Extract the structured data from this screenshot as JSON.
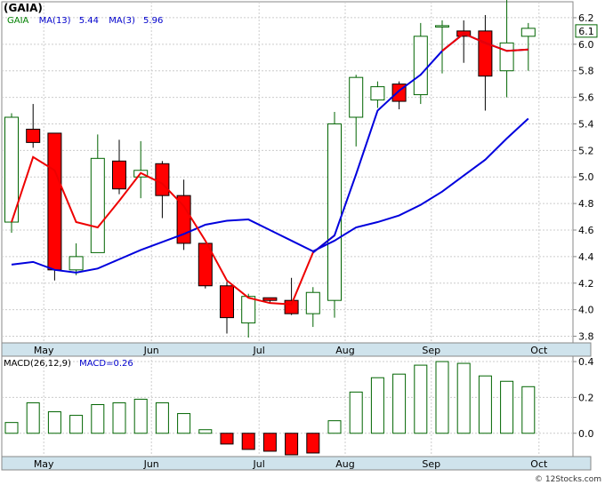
{
  "chart_data": [
    {
      "type": "candlestick",
      "title": "(GAIA)",
      "legend": [
        {
          "label": "GAIA",
          "color": "#008000"
        },
        {
          "label": "MA(13)",
          "value": "5.44",
          "color": "#0000cc"
        },
        {
          "label": "MA(3)",
          "value": "5.96",
          "color": "#0000cc"
        }
      ],
      "x_tick_labels": [
        {
          "label": "May",
          "index": 1
        },
        {
          "label": "Jun",
          "index": 6
        },
        {
          "label": "Jul",
          "index": 11
        },
        {
          "label": "Aug",
          "index": 15
        },
        {
          "label": "Sep",
          "index": 19
        },
        {
          "label": "Oct",
          "index": 24
        }
      ],
      "y_tick_labels": [
        "3.8",
        "4.0",
        "4.2",
        "4.4",
        "4.6",
        "4.8",
        "5.0",
        "5.2",
        "5.4",
        "5.6",
        "5.8",
        "6.0",
        "6.2"
      ],
      "ylim": [
        3.75,
        6.32
      ],
      "last_price": "6.1",
      "candles": [
        {
          "o": 4.66,
          "h": 5.48,
          "l": 4.58,
          "c": 5.45
        },
        {
          "o": 5.36,
          "h": 5.55,
          "l": 5.22,
          "c": 5.26
        },
        {
          "o": 5.33,
          "h": 5.33,
          "l": 4.22,
          "c": 4.3
        },
        {
          "o": 4.3,
          "h": 4.5,
          "l": 4.26,
          "c": 4.4
        },
        {
          "o": 4.43,
          "h": 5.32,
          "l": 4.43,
          "c": 5.14
        },
        {
          "o": 5.12,
          "h": 5.28,
          "l": 4.87,
          "c": 4.91
        },
        {
          "o": 5.0,
          "h": 5.27,
          "l": 4.84,
          "c": 5.05
        },
        {
          "o": 5.1,
          "h": 5.12,
          "l": 4.69,
          "c": 4.86
        },
        {
          "o": 4.86,
          "h": 4.98,
          "l": 4.45,
          "c": 4.5
        },
        {
          "o": 4.5,
          "h": 4.5,
          "l": 4.16,
          "c": 4.18
        },
        {
          "o": 4.18,
          "h": 4.21,
          "l": 3.82,
          "c": 3.94
        },
        {
          "o": 3.9,
          "h": 4.12,
          "l": 3.79,
          "c": 4.1
        },
        {
          "o": 4.09,
          "h": 4.09,
          "l": 4.05,
          "c": 4.07
        },
        {
          "o": 4.07,
          "h": 4.24,
          "l": 3.96,
          "c": 3.97
        },
        {
          "o": 3.97,
          "h": 4.17,
          "l": 3.87,
          "c": 4.13
        },
        {
          "o": 4.07,
          "h": 5.49,
          "l": 3.94,
          "c": 5.4
        },
        {
          "o": 5.45,
          "h": 5.77,
          "l": 5.23,
          "c": 5.75
        },
        {
          "o": 5.58,
          "h": 5.72,
          "l": 5.52,
          "c": 5.68
        },
        {
          "o": 5.7,
          "h": 5.72,
          "l": 5.51,
          "c": 5.57
        },
        {
          "o": 5.62,
          "h": 6.16,
          "l": 5.55,
          "c": 6.06
        },
        {
          "o": 6.14,
          "h": 6.18,
          "l": 5.78,
          "c": 6.14
        },
        {
          "o": 6.1,
          "h": 6.18,
          "l": 5.86,
          "c": 6.06
        },
        {
          "o": 6.1,
          "h": 6.22,
          "l": 5.5,
          "c": 5.76
        },
        {
          "o": 5.8,
          "h": 6.35,
          "l": 5.6,
          "c": 6.01
        },
        {
          "o": 6.06,
          "h": 6.16,
          "l": 5.8,
          "c": 6.12
        }
      ],
      "ma_fast": [
        [
          0,
          4.66
        ],
        [
          1,
          5.15
        ],
        [
          2,
          5.05
        ],
        [
          3,
          4.66
        ],
        [
          4,
          4.62
        ],
        [
          5,
          4.82
        ],
        [
          6,
          5.03
        ],
        [
          7,
          4.95
        ],
        [
          8,
          4.78
        ],
        [
          9,
          4.52
        ],
        [
          10,
          4.22
        ],
        [
          11,
          4.09
        ],
        [
          12,
          4.05
        ],
        [
          13,
          4.04
        ],
        [
          14,
          4.43
        ],
        [
          15,
          4.56
        ],
        [
          16,
          5.02
        ],
        [
          17,
          5.5
        ],
        [
          18,
          5.65
        ],
        [
          19,
          5.77
        ],
        [
          20,
          5.95
        ],
        [
          21,
          6.08
        ],
        [
          22,
          6.01
        ],
        [
          23,
          5.95
        ],
        [
          24,
          5.96
        ]
      ],
      "ma_slow": [
        [
          0,
          4.34
        ],
        [
          1,
          4.36
        ],
        [
          2,
          4.3
        ],
        [
          3,
          4.28
        ],
        [
          4,
          4.31
        ],
        [
          5,
          4.38
        ],
        [
          6,
          4.45
        ],
        [
          7,
          4.51
        ],
        [
          8,
          4.57
        ],
        [
          9,
          4.64
        ],
        [
          10,
          4.67
        ],
        [
          11,
          4.68
        ],
        [
          12,
          4.6
        ],
        [
          13,
          4.52
        ],
        [
          14,
          4.44
        ],
        [
          15,
          4.52
        ],
        [
          16,
          4.62
        ],
        [
          17,
          4.66
        ],
        [
          18,
          4.71
        ],
        [
          19,
          4.79
        ],
        [
          20,
          4.89
        ],
        [
          21,
          5.01
        ],
        [
          22,
          5.13
        ],
        [
          23,
          5.29
        ],
        [
          24,
          5.44
        ]
      ]
    },
    {
      "type": "bar",
      "title": "MACD(26,12,9)",
      "legend": [
        {
          "label": "MACD(26,12,9)",
          "color": "#000000"
        },
        {
          "label": "MACD=0.26",
          "color": "#0000cc"
        }
      ],
      "x_tick_labels": [
        {
          "label": "May",
          "index": 1
        },
        {
          "label": "Jun",
          "index": 6
        },
        {
          "label": "Jul",
          "index": 11
        },
        {
          "label": "Aug",
          "index": 15
        },
        {
          "label": "Sep",
          "index": 19
        },
        {
          "label": "Oct",
          "index": 24
        }
      ],
      "y_tick_labels": [
        "0.0",
        "0.2",
        "0.4"
      ],
      "ylim": [
        -0.13,
        0.43
      ],
      "values": [
        0.06,
        0.17,
        0.12,
        0.1,
        0.16,
        0.17,
        0.19,
        0.17,
        0.11,
        0.02,
        -0.06,
        -0.09,
        -0.1,
        -0.12,
        -0.11,
        0.07,
        0.23,
        0.31,
        0.33,
        0.38,
        0.4,
        0.39,
        0.32,
        0.29,
        0.26
      ]
    }
  ],
  "credit": "© 12Stocks.com"
}
